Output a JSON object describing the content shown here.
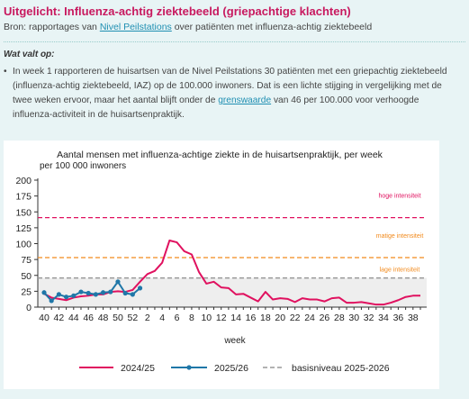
{
  "header": {
    "title": "Uitgelicht: Influenza-achtig ziektebeeld (griepachtige klachten)",
    "source_prefix": "Bron: rapportages van ",
    "source_link": "Nivel Peilstations",
    "source_suffix": " over patiënten met influenza-achtig ziektebeeld"
  },
  "section": {
    "heading": "Wat valt op:",
    "bullet_part1": "In week 1 rapporteren de huisartsen van de Nivel Peilstations 30 patiënten met een griepachtig ziektebeeld (influenza-achtig ziektebeeld, IAZ) op de 100.000 inwoners. Dat is een lichte stijging in vergelijking met de twee weken ervoor, maar het aantal blijft onder de ",
    "bullet_link": "grenswaarde",
    "bullet_part2": " van 46 per 100.000 voor verhoogde influenza-activiteit in de huisartsenpraktijk."
  },
  "colors": {
    "series_2425": "#e0115f",
    "series_2526": "#1f77a8",
    "baseline": "#999999",
    "high": "#e0115f",
    "medium": "#f28a1c",
    "baseline_zone": "#eeeeee"
  },
  "chart_data": {
    "type": "line",
    "title": "Aantal mensen met influenza-achtige ziekte in de huisartsenpraktijk, per week",
    "ylabel": "per 100 000 inwoners",
    "xlabel": "week",
    "ylim": [
      0,
      200
    ],
    "yticks": [
      0,
      25,
      50,
      75,
      100,
      125,
      150,
      175,
      200
    ],
    "xtick_labels": [
      "40",
      "42",
      "44",
      "46",
      "48",
      "50",
      "52",
      "2",
      "4",
      "6",
      "8",
      "10",
      "12",
      "14",
      "16",
      "18",
      "20",
      "22",
      "24",
      "26",
      "28",
      "30",
      "32",
      "34",
      "36",
      "38"
    ],
    "weeks": [
      "40",
      "41",
      "42",
      "43",
      "44",
      "45",
      "46",
      "47",
      "48",
      "49",
      "50",
      "51",
      "52",
      "1",
      "2",
      "3",
      "4",
      "5",
      "6",
      "7",
      "8",
      "9",
      "10",
      "11",
      "12",
      "13",
      "14",
      "15",
      "16",
      "17",
      "18",
      "19",
      "20",
      "21",
      "22",
      "23",
      "24",
      "25",
      "26",
      "27",
      "28",
      "29",
      "30",
      "31",
      "32",
      "33",
      "34",
      "35",
      "36",
      "37",
      "38",
      "39"
    ],
    "series": [
      {
        "name": "2024/25",
        "values": [
          21,
          15,
          13,
          11,
          15,
          17,
          18,
          20,
          20,
          24,
          25,
          24,
          27,
          40,
          52,
          57,
          70,
          105,
          102,
          88,
          83,
          55,
          37,
          40,
          31,
          30,
          20,
          21,
          15,
          9,
          24,
          12,
          14,
          13,
          8,
          14,
          12,
          12,
          9,
          14,
          15,
          7,
          7,
          8,
          6,
          4,
          4,
          7,
          11,
          16,
          18,
          18
        ]
      },
      {
        "name": "2025/26",
        "values": [
          23,
          10,
          20,
          16,
          18,
          24,
          22,
          20,
          23,
          24,
          40,
          22,
          20,
          30
        ]
      }
    ],
    "thresholds": [
      {
        "label": "hoge intensiteit",
        "value": 141
      },
      {
        "label": "matige intensiteit",
        "value": 78
      },
      {
        "label": "lage intensiteit",
        "value": 46
      }
    ],
    "baseline": {
      "name": "basisniveau 2025-2026",
      "value": 46
    },
    "legend_position": "bottom"
  }
}
